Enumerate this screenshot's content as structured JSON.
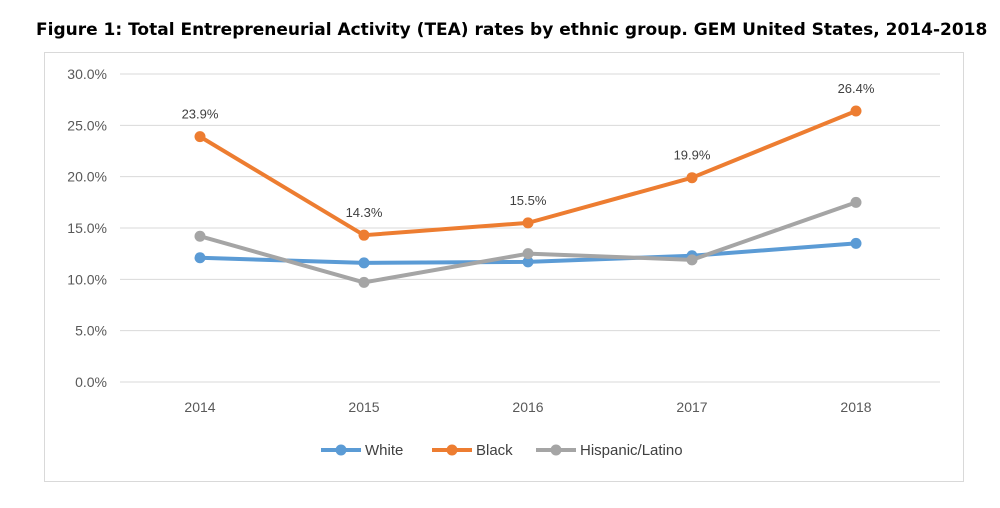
{
  "title": "Figure 1: Total Entrepreneurial Activity (TEA) rates by ethnic group. GEM United States, 2014-2018",
  "chart_data": {
    "type": "line",
    "x": [
      "2014",
      "2015",
      "2016",
      "2017",
      "2018"
    ],
    "ylim": [
      0,
      30
    ],
    "yticks": [
      0,
      5,
      10,
      15,
      20,
      25,
      30
    ],
    "ytick_labels": [
      "0.0%",
      "5.0%",
      "10.0%",
      "15.0%",
      "20.0%",
      "25.0%",
      "30.0%"
    ],
    "grid": true,
    "legend_position": "bottom",
    "series": [
      {
        "name": "White",
        "color": "#5b9bd5",
        "values": [
          12.1,
          11.6,
          11.7,
          12.3,
          13.5
        ],
        "labels": null
      },
      {
        "name": "Black",
        "color": "#ed7d31",
        "values": [
          23.9,
          14.3,
          15.5,
          19.9,
          26.4
        ],
        "labels": [
          "23.9%",
          "14.3%",
          "15.5%",
          "19.9%",
          "26.4%"
        ]
      },
      {
        "name": "Hispanic/Latino",
        "color": "#a5a5a5",
        "values": [
          14.2,
          9.7,
          12.5,
          11.9,
          17.5
        ],
        "labels": null
      }
    ]
  }
}
